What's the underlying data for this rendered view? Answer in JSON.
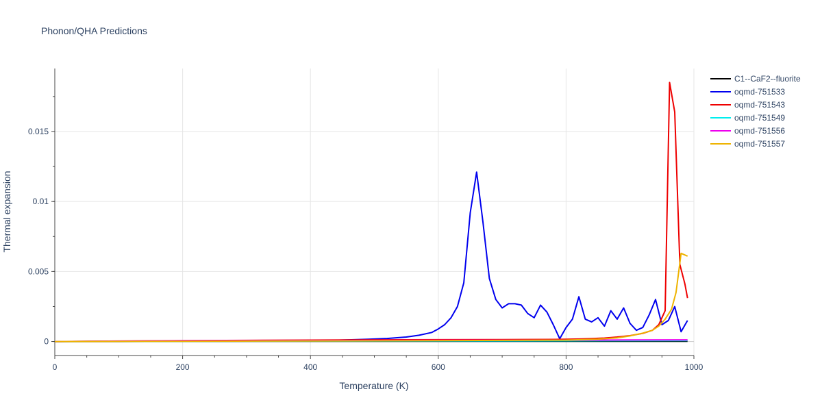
{
  "chart_data": {
    "type": "line",
    "title": "Phonon/QHA Predictions",
    "xlabel": "Temperature (K)",
    "ylabel": "Thermal expansion",
    "xlim": [
      0,
      1000
    ],
    "ylim": [
      -0.001,
      0.0195
    ],
    "x_ticks": [
      0,
      200,
      400,
      600,
      800,
      1000
    ],
    "x_tick_labels": [
      "0",
      "200",
      "400",
      "600",
      "800",
      "1000"
    ],
    "y_ticks": [
      0,
      0.005,
      0.01,
      0.015
    ],
    "y_tick_labels": [
      "0",
      "0.005",
      "0.01",
      "0.015"
    ],
    "grid": true,
    "legend_position": "right",
    "series": [
      {
        "name": "C1--CaF2--fluorite",
        "color": "#000000",
        "x": [
          0,
          100,
          200,
          300,
          400,
          500,
          600,
          700,
          800,
          900,
          990
        ],
        "y": [
          0,
          0,
          1e-05,
          2e-05,
          2e-05,
          2e-05,
          2e-05,
          2e-05,
          2e-05,
          2e-05,
          2e-05
        ]
      },
      {
        "name": "oqmd-751533",
        "color": "#0000ee",
        "x": [
          0,
          100,
          200,
          300,
          400,
          430,
          460,
          490,
          520,
          550,
          570,
          590,
          600,
          610,
          620,
          630,
          640,
          650,
          660,
          670,
          680,
          690,
          700,
          710,
          720,
          730,
          740,
          750,
          760,
          770,
          780,
          790,
          800,
          810,
          820,
          830,
          840,
          850,
          860,
          870,
          880,
          890,
          900,
          910,
          920,
          930,
          940,
          950,
          960,
          970,
          980,
          990
        ],
        "y": [
          0,
          2e-05,
          3e-05,
          4e-05,
          6e-05,
          8e-05,
          0.00012,
          0.00016,
          0.00022,
          0.00032,
          0.00045,
          0.00065,
          0.0009,
          0.0012,
          0.0017,
          0.0025,
          0.0042,
          0.0092,
          0.0121,
          0.0085,
          0.0045,
          0.003,
          0.0024,
          0.0027,
          0.0027,
          0.0026,
          0.002,
          0.0017,
          0.0026,
          0.0021,
          0.0012,
          0.0002,
          0.001,
          0.0016,
          0.0032,
          0.0016,
          0.0014,
          0.0017,
          0.0011,
          0.0022,
          0.0016,
          0.0024,
          0.0013,
          0.0008,
          0.001,
          0.0019,
          0.003,
          0.0012,
          0.0015,
          0.0025,
          0.0007,
          0.0015
        ]
      },
      {
        "name": "oqmd-751543",
        "color": "#ee0000",
        "x": [
          0,
          100,
          200,
          300,
          400,
          500,
          600,
          700,
          780,
          800,
          820,
          840,
          860,
          880,
          900,
          920,
          935,
          945,
          955,
          962,
          970,
          978,
          986,
          990
        ],
        "y": [
          0,
          3e-05,
          6e-05,
          8e-05,
          0.0001,
          0.00012,
          0.00013,
          0.00014,
          0.00015,
          0.00016,
          0.00018,
          0.00021,
          0.00025,
          0.00032,
          0.00042,
          0.00058,
          0.0008,
          0.0012,
          0.0022,
          0.0185,
          0.0164,
          0.0055,
          0.0041,
          0.0031
        ]
      },
      {
        "name": "oqmd-751549",
        "color": "#00eeee",
        "x": [
          0,
          200,
          400,
          600,
          800,
          990
        ],
        "y": [
          0,
          2e-05,
          3e-05,
          4e-05,
          5e-05,
          6e-05
        ]
      },
      {
        "name": "oqmd-751556",
        "color": "#ee00ee",
        "x": [
          0,
          200,
          400,
          600,
          800,
          900,
          990
        ],
        "y": [
          0,
          5e-05,
          7e-05,
          9e-05,
          0.0001,
          0.00011,
          0.00012
        ]
      },
      {
        "name": "oqmd-751557",
        "color": "#eeb300",
        "x": [
          0,
          200,
          400,
          600,
          800,
          850,
          880,
          900,
          920,
          935,
          945,
          955,
          965,
          972,
          980,
          990
        ],
        "y": [
          0,
          2e-05,
          4e-05,
          6e-05,
          0.0001,
          0.00017,
          0.00026,
          0.0004,
          0.0006,
          0.0008,
          0.0011,
          0.0016,
          0.0023,
          0.0035,
          0.0063,
          0.0061
        ]
      }
    ]
  }
}
